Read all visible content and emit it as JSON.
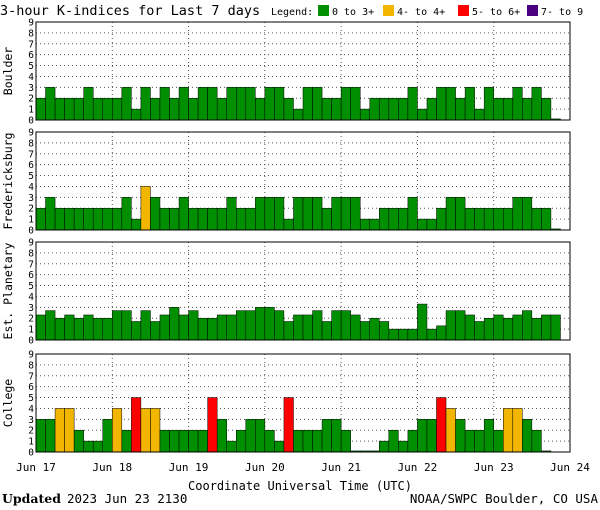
{
  "chart_data": {
    "type": "bar",
    "title": "3-hour K-indices for Last 7 days",
    "legend": {
      "label": "Legend:",
      "position": "top-right",
      "entries": [
        {
          "label": "0 to 3+",
          "color": "#008f00"
        },
        {
          "label": "4- to 4+",
          "color": "#f2b600"
        },
        {
          "label": "5- to 6+",
          "color": "#ff0000"
        },
        {
          "label": "7- to 9",
          "color": "#4b0082"
        }
      ]
    },
    "ylim": [
      0,
      9
    ],
    "yticks": [
      "0",
      "1",
      "2",
      "3",
      "4",
      "5",
      "6",
      "7",
      "8",
      "9"
    ],
    "xticks": [
      "Jun 17",
      "Jun 18",
      "Jun 19",
      "Jun 20",
      "Jun 21",
      "Jun 22",
      "Jun 23",
      "Jun 24"
    ],
    "xlabel": "Coordinate Universal Time (UTC)",
    "grid": true,
    "panels": [
      {
        "station": "Boulder",
        "values": [
          2,
          3,
          2,
          2,
          2,
          3,
          2,
          2,
          2,
          3,
          1,
          3,
          2,
          3,
          2,
          3,
          2,
          3,
          3,
          2,
          3,
          3,
          3,
          2,
          3,
          3,
          2,
          1,
          3,
          3,
          2,
          2,
          3,
          3,
          1,
          2,
          2,
          2,
          2,
          3,
          1,
          2,
          3,
          3,
          2,
          3,
          1,
          3,
          2,
          2,
          3,
          2,
          3,
          2,
          0.1
        ]
      },
      {
        "station": "Fredericksburg",
        "values": [
          2,
          3,
          2,
          2,
          2,
          2,
          2,
          2,
          2,
          3,
          1,
          4,
          3,
          2,
          2,
          3,
          2,
          2,
          2,
          2,
          3,
          2,
          2,
          3,
          3,
          3,
          1,
          3,
          3,
          3,
          2,
          3,
          3,
          3,
          1,
          1,
          2,
          2,
          2,
          3,
          1,
          1,
          2,
          3,
          3,
          2,
          2,
          2,
          2,
          2,
          3,
          3,
          2,
          2,
          0.1
        ]
      },
      {
        "station": "Est. Planetary",
        "values": [
          2.3,
          2.7,
          2,
          2.3,
          2,
          2.3,
          2,
          2,
          2.7,
          2.7,
          1.7,
          2.7,
          1.7,
          2.3,
          3,
          2.3,
          2.7,
          2,
          2,
          2.3,
          2.3,
          2.7,
          2.7,
          3,
          3,
          2.7,
          1.7,
          2.3,
          2.3,
          2.7,
          1.7,
          2.7,
          2.7,
          2.3,
          1.7,
          2,
          1.7,
          1,
          1,
          1,
          3.3,
          1,
          1.3,
          2.7,
          2.7,
          2.3,
          1.7,
          2,
          2.3,
          2,
          2.3,
          2.7,
          2,
          2.3,
          2.3
        ]
      },
      {
        "station": "College",
        "values": [
          3,
          3,
          4,
          4,
          2,
          1,
          1,
          3,
          4,
          2,
          5,
          4,
          4,
          2,
          2,
          2,
          2,
          2,
          5,
          3,
          1,
          2,
          3,
          3,
          2,
          1,
          5,
          2,
          2,
          2,
          3,
          3,
          2,
          0.1,
          0.1,
          0.1,
          1,
          2,
          1,
          2,
          3,
          3,
          5,
          4,
          3,
          2,
          2,
          3,
          2,
          4,
          4,
          3,
          2,
          0.1
        ]
      }
    ]
  },
  "footer": {
    "updated_label": "Updated",
    "updated_value": "2023 Jun 23 2130",
    "credit": "NOAA/SWPC Boulder, CO USA"
  }
}
